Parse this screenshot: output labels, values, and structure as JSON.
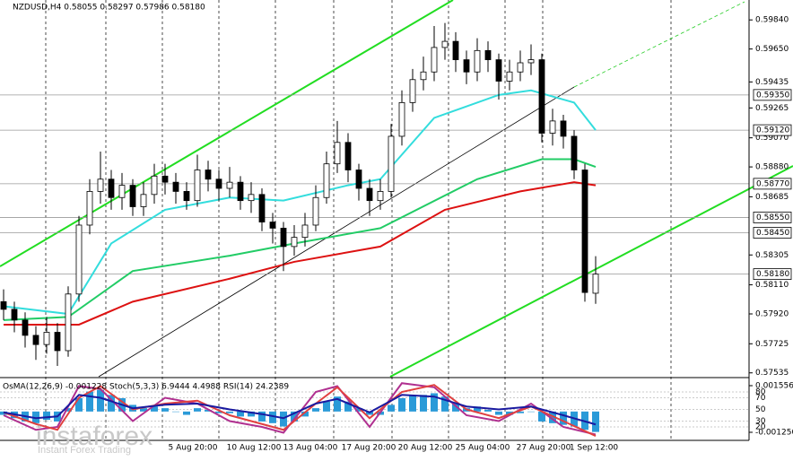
{
  "chart_data": [
    {
      "type": "candlestick",
      "title": "NZDUSD,H4  0.58055 0.58297 0.57986 0.58180",
      "ylim": [
        0.5751,
        0.5997
      ],
      "yticks": [
        {
          "value": 0.5984,
          "label": "0.59840"
        },
        {
          "value": 0.5965,
          "label": "0.59650"
        },
        {
          "value": 0.59435,
          "label": "0.59435"
        },
        {
          "value": 0.59265,
          "label": "0.59265"
        },
        {
          "value": 0.5907,
          "label": "0.59070"
        },
        {
          "value": 0.5888,
          "label": "0.58880"
        },
        {
          "value": 0.58685,
          "label": "0.58685"
        },
        {
          "value": 0.58305,
          "label": "0.58305"
        },
        {
          "value": 0.5811,
          "label": "0.58110"
        },
        {
          "value": 0.5792,
          "label": "0.57920"
        },
        {
          "value": 0.57725,
          "label": "0.57725"
        },
        {
          "value": 0.57535,
          "label": "0.57535"
        }
      ],
      "levels": [
        {
          "value": 0.5935,
          "label": "0.59350"
        },
        {
          "value": 0.5912,
          "label": "0.59120"
        },
        {
          "value": 0.5877,
          "label": "0.58770"
        },
        {
          "value": 0.5855,
          "label": "0.58550"
        },
        {
          "value": 0.5845,
          "label": "0.58450"
        },
        {
          "value": 0.5818,
          "label": "0.58180"
        }
      ],
      "time_labels": [
        "5 Aug 20:00",
        "10 Aug 12:00",
        "13 Aug 04:00",
        "17 Aug 20:00",
        "20 Aug 12:00",
        "25 Aug 04:00",
        "27 Aug 20:00",
        "1 Sep 12:00"
      ],
      "open": [
        0.58,
        0.5795,
        0.5788,
        0.5778,
        0.5772,
        0.578,
        0.5768,
        0.5805,
        0.585,
        0.5872,
        0.588,
        0.5868,
        0.5876,
        0.5862,
        0.587,
        0.5882,
        0.5878,
        0.5872,
        0.5866,
        0.5886,
        0.588,
        0.5874,
        0.5878,
        0.5866,
        0.587,
        0.5852,
        0.5848,
        0.5836,
        0.5842,
        0.585,
        0.5868,
        0.589,
        0.5904,
        0.5886,
        0.5874,
        0.5866,
        0.5872,
        0.5908,
        0.593,
        0.5945,
        0.595,
        0.5966,
        0.597,
        0.5958,
        0.595,
        0.5964,
        0.5958,
        0.5944,
        0.595,
        0.5956,
        0.5958,
        0.591,
        0.5918,
        0.5908,
        0.5886,
        0.58055
      ],
      "high": [
        0.5808,
        0.58,
        0.5793,
        0.5784,
        0.579,
        0.5786,
        0.581,
        0.5856,
        0.588,
        0.5898,
        0.5886,
        0.5884,
        0.588,
        0.5878,
        0.589,
        0.589,
        0.5884,
        0.5878,
        0.5896,
        0.5892,
        0.5886,
        0.5888,
        0.5882,
        0.5878,
        0.5874,
        0.5858,
        0.5852,
        0.585,
        0.5858,
        0.5876,
        0.5898,
        0.5918,
        0.591,
        0.589,
        0.588,
        0.588,
        0.5916,
        0.5938,
        0.5952,
        0.596,
        0.598,
        0.5982,
        0.5976,
        0.5964,
        0.5972,
        0.597,
        0.5962,
        0.5958,
        0.5964,
        0.5968,
        0.5962,
        0.5926,
        0.5922,
        0.5912,
        0.589,
        0.58297
      ],
      "low": [
        0.5788,
        0.578,
        0.577,
        0.5762,
        0.5766,
        0.5758,
        0.5764,
        0.58,
        0.5844,
        0.5864,
        0.586,
        0.586,
        0.5856,
        0.5856,
        0.5864,
        0.587,
        0.5864,
        0.586,
        0.5862,
        0.5872,
        0.5866,
        0.5868,
        0.586,
        0.5858,
        0.5846,
        0.5838,
        0.582,
        0.583,
        0.5836,
        0.5846,
        0.5864,
        0.5884,
        0.5878,
        0.5866,
        0.5856,
        0.586,
        0.5868,
        0.5902,
        0.5924,
        0.5938,
        0.5944,
        0.5958,
        0.595,
        0.5942,
        0.5944,
        0.595,
        0.5932,
        0.5938,
        0.5944,
        0.5948,
        0.5904,
        0.5902,
        0.59,
        0.588,
        0.58,
        0.57986
      ],
      "close": [
        0.5795,
        0.5788,
        0.5778,
        0.5772,
        0.578,
        0.5768,
        0.5805,
        0.585,
        0.5872,
        0.588,
        0.5868,
        0.5876,
        0.5862,
        0.587,
        0.5882,
        0.5878,
        0.5872,
        0.5866,
        0.5886,
        0.588,
        0.5874,
        0.5878,
        0.5866,
        0.587,
        0.5852,
        0.5848,
        0.5836,
        0.5842,
        0.585,
        0.5868,
        0.589,
        0.5904,
        0.5886,
        0.5874,
        0.5866,
        0.5872,
        0.5908,
        0.593,
        0.5945,
        0.595,
        0.5966,
        0.597,
        0.5958,
        0.595,
        0.5964,
        0.5958,
        0.5944,
        0.595,
        0.5956,
        0.5958,
        0.591,
        0.5918,
        0.5908,
        0.5886,
        0.5806,
        0.5818
      ],
      "series": [
        {
          "color": "#33dddd",
          "x": [
            0,
            6,
            10,
            15,
            21,
            26,
            32,
            35,
            40,
            46,
            49,
            53,
            55
          ],
          "values": [
            0.5797,
            0.5792,
            0.5838,
            0.586,
            0.5868,
            0.5866,
            0.5876,
            0.588,
            0.592,
            0.5935,
            0.5938,
            0.593,
            0.5912
          ]
        },
        {
          "color": "#22cc66",
          "x": [
            0,
            6,
            12,
            21,
            27,
            35,
            44,
            50,
            53,
            55
          ],
          "values": [
            0.5788,
            0.579,
            0.582,
            0.583,
            0.5838,
            0.5848,
            0.588,
            0.5893,
            0.5893,
            0.5888
          ]
        },
        {
          "color": "#dd1111",
          "x": [
            0,
            7,
            12,
            21,
            27,
            35,
            41,
            48,
            53,
            55
          ],
          "values": [
            0.5785,
            0.5785,
            0.58,
            0.5815,
            0.5826,
            0.5836,
            0.586,
            0.5872,
            0.5878,
            0.5876
          ]
        }
      ]
    },
    {
      "type": "indicator",
      "title": "OsMA(12,26,9) -0.001228  Stoch(5,3,3) 6.9444 4.4988  RSI(14) 24.2389",
      "ylim": [
        -0.00125,
        0.001556
      ],
      "yticks": [
        0.001556,
        {
          "value": -0.00125,
          "label": "-0.001250"
        }
      ],
      "y2lim": [
        0,
        100
      ],
      "y2ticks": [
        80,
        70,
        50,
        30,
        20
      ],
      "osma": {
        "color": "#2a9ad8",
        "values": [
          -0.0002,
          -0.0004,
          -0.0006,
          -0.0007,
          -0.0005,
          -0.0006,
          0.0002,
          0.0008,
          0.0012,
          0.0013,
          0.001,
          0.0008,
          0.0004,
          0.0002,
          0.0003,
          0.0002,
          0,
          -0.0002,
          0.0002,
          0.0001,
          -0.0001,
          -0.0001,
          -0.0003,
          -0.0003,
          -0.0006,
          -0.0007,
          -0.0009,
          -0.0006,
          -0.0003,
          0.0002,
          0.0006,
          0.0009,
          0.0006,
          0.0002,
          -0.0002,
          -0.0002,
          0.0004,
          0.0008,
          0.001,
          0.001,
          0.0011,
          0.0009,
          0.0005,
          0.0002,
          0.0003,
          0.0001,
          -0.0002,
          -0.0002,
          -0.0001,
          0,
          -0.0006,
          -0.0007,
          -0.0008,
          -0.0009,
          -0.0011,
          -0.001228
        ]
      },
      "series": [
        {
          "color": "#b03090",
          "axis": "y2",
          "x": [
            0,
            3,
            5,
            7,
            9,
            12,
            15,
            18,
            21,
            24,
            26,
            29,
            31,
            34,
            37,
            40,
            43,
            46,
            49,
            52,
            55
          ],
          "values": [
            40,
            15,
            20,
            90,
            85,
            30,
            70,
            60,
            30,
            20,
            10,
            80,
            90,
            20,
            95,
            88,
            40,
            30,
            60,
            20,
            6.9444
          ]
        },
        {
          "color": "#e04040",
          "axis": "y2",
          "x": [
            0,
            3,
            5,
            7,
            9,
            12,
            15,
            18,
            21,
            24,
            26,
            29,
            31,
            34,
            37,
            40,
            43,
            46,
            49,
            52,
            55
          ],
          "values": [
            45,
            25,
            15,
            70,
            90,
            50,
            60,
            65,
            40,
            25,
            15,
            60,
            88,
            35,
            80,
            92,
            50,
            35,
            55,
            30,
            4.4988
          ]
        },
        {
          "color": "#1a1aa0",
          "axis": "y2",
          "x": [
            0,
            3,
            5,
            7,
            9,
            12,
            15,
            18,
            21,
            24,
            26,
            29,
            31,
            34,
            37,
            40,
            43,
            46,
            49,
            52,
            55
          ],
          "values": [
            45,
            35,
            38,
            75,
            70,
            52,
            58,
            60,
            50,
            42,
            35,
            60,
            68,
            45,
            75,
            72,
            55,
            50,
            55,
            40,
            24.2389
          ]
        }
      ]
    }
  ],
  "watermark": {
    "brand": "instaforex",
    "tagline": "Instant Forex Trading"
  }
}
